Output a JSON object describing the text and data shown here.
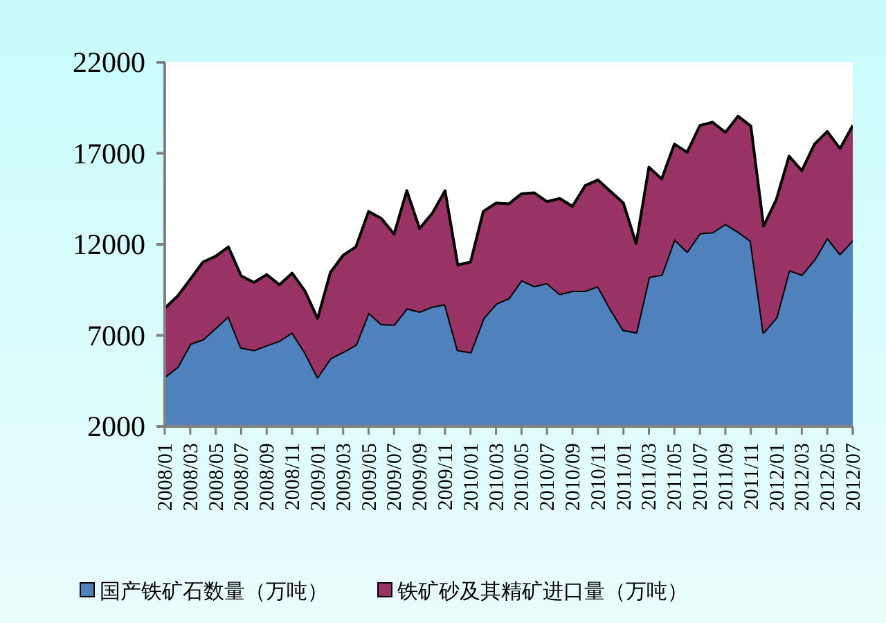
{
  "chart_data": {
    "type": "area",
    "stacked": true,
    "categories": [
      "2008/01",
      null,
      "2008/03",
      null,
      "2008/05",
      null,
      "2008/07",
      null,
      "2008/09",
      null,
      "2008/11",
      null,
      "2009/01",
      null,
      "2009/03",
      null,
      "2009/05",
      null,
      "2009/07",
      null,
      "2009/09",
      null,
      "2009/11",
      null,
      "2010/01",
      null,
      "2010/03",
      null,
      "2010/05",
      null,
      "2010/07",
      null,
      "2010/09",
      null,
      "2010/11",
      null,
      "2011/01",
      null,
      "2011/03",
      null,
      "2011/05",
      null,
      "2011/07",
      null,
      "2011/09",
      null,
      "2011/11",
      null,
      "2012/01",
      null,
      "2012/03",
      null,
      "2012/05",
      null,
      "2012/07"
    ],
    "series": [
      {
        "name": "国产铁矿石数量（万吨）",
        "color": "#4f81bd",
        "values": [
          4720,
          5270,
          6540,
          6790,
          7420,
          8060,
          6330,
          6200,
          6460,
          6710,
          7170,
          6080,
          4720,
          5750,
          6100,
          6490,
          8260,
          7630,
          7600,
          8490,
          8310,
          8590,
          8720,
          6200,
          6080,
          7930,
          8740,
          9050,
          10040,
          9710,
          9880,
          9280,
          9450,
          9450,
          9710,
          8440,
          7300,
          7170,
          10210,
          10340,
          12290,
          11610,
          12620,
          12670,
          13130,
          12700,
          12190,
          7170,
          7980,
          10590,
          10340,
          11180,
          12370,
          11480,
          12240
        ]
      },
      {
        "name": "铁矿砂及其精矿进口量（万吨）",
        "color": "#993366",
        "values": [
          3770,
          3880,
          3540,
          4240,
          3930,
          3800,
          3940,
          3710,
          3880,
          3070,
          3250,
          3370,
          3210,
          4710,
          5300,
          5370,
          5550,
          5800,
          4970,
          6460,
          4560,
          5120,
          6230,
          4670,
          4950,
          5880,
          5530,
          5170,
          4740,
          5120,
          4470,
          5240,
          4640,
          5780,
          5830,
          6460,
          6970,
          4870,
          6030,
          5250,
          5220,
          5450,
          5910,
          6040,
          5020,
          6340,
          6310,
          5830,
          6490,
          6260,
          5710,
          6330,
          5830,
          5780,
          6290
        ]
      }
    ],
    "ylim": [
      2000,
      22000
    ],
    "yticks": [
      2000,
      7000,
      12000,
      17000,
      22000
    ],
    "grid": false,
    "legend": "bottom"
  }
}
